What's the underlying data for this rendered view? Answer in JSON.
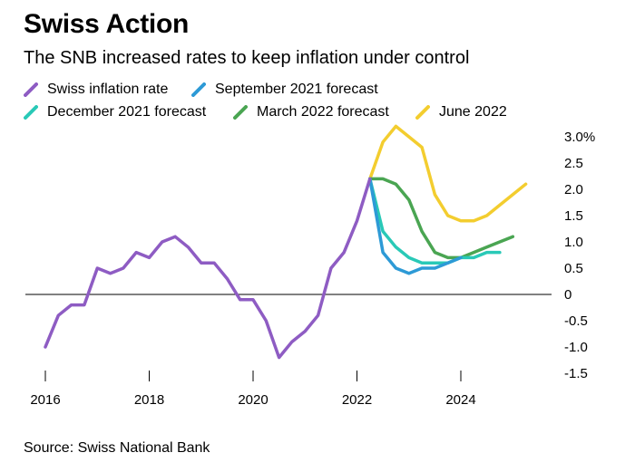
{
  "title": "Swiss Action",
  "subtitle": "The SNB increased rates to keep inflation under control",
  "source": "Source: Swiss National Bank",
  "chart_data": {
    "type": "line",
    "x_axis": {
      "ticks": [
        2016,
        2018,
        2020,
        2022,
        2024
      ],
      "range": [
        2015.9,
        2026.0
      ]
    },
    "y_axis": {
      "range": [
        -1.5,
        3.0
      ],
      "ticks": [
        3.0,
        2.5,
        2.0,
        1.5,
        1.0,
        0.5,
        0,
        -0.5,
        -1.0,
        -1.5
      ],
      "tick_labels": [
        "3.0%",
        "2.5",
        "2.0",
        "1.5",
        "1.0",
        "0.5",
        "0",
        "-0.5",
        "-1.0",
        "-1.5"
      ],
      "position": "right",
      "zero_line": true
    },
    "grid": false,
    "legend_position": "top",
    "series": [
      {
        "name": "Swiss inflation rate",
        "color": "#8e5cc3",
        "points": [
          [
            2016.0,
            -1.0
          ],
          [
            2016.25,
            -0.4
          ],
          [
            2016.5,
            -0.2
          ],
          [
            2016.75,
            -0.2
          ],
          [
            2017.0,
            0.5
          ],
          [
            2017.25,
            0.4
          ],
          [
            2017.5,
            0.5
          ],
          [
            2017.75,
            0.8
          ],
          [
            2018.0,
            0.7
          ],
          [
            2018.25,
            1.0
          ],
          [
            2018.5,
            1.1
          ],
          [
            2018.75,
            0.9
          ],
          [
            2019.0,
            0.6
          ],
          [
            2019.25,
            0.6
          ],
          [
            2019.5,
            0.3
          ],
          [
            2019.75,
            -0.1
          ],
          [
            2020.0,
            -0.1
          ],
          [
            2020.25,
            -0.5
          ],
          [
            2020.5,
            -1.2
          ],
          [
            2020.75,
            -0.9
          ],
          [
            2021.0,
            -0.7
          ],
          [
            2021.25,
            -0.4
          ],
          [
            2021.5,
            0.5
          ],
          [
            2021.75,
            0.8
          ],
          [
            2022.0,
            1.4
          ],
          [
            2022.25,
            2.2
          ]
        ]
      },
      {
        "name": "September 2021 forecast",
        "color": "#2d9ad6",
        "points": [
          [
            2022.25,
            2.2
          ],
          [
            2022.5,
            0.8
          ],
          [
            2022.75,
            0.5
          ],
          [
            2023.0,
            0.4
          ],
          [
            2023.25,
            0.5
          ],
          [
            2023.5,
            0.5
          ],
          [
            2023.75,
            0.6
          ],
          [
            2024.0,
            0.7
          ]
        ]
      },
      {
        "name": "December 2021 forecast",
        "color": "#29c9b7",
        "points": [
          [
            2022.25,
            2.2
          ],
          [
            2022.5,
            1.2
          ],
          [
            2022.75,
            0.9
          ],
          [
            2023.0,
            0.7
          ],
          [
            2023.25,
            0.6
          ],
          [
            2023.5,
            0.6
          ],
          [
            2023.75,
            0.6
          ],
          [
            2024.0,
            0.7
          ],
          [
            2024.25,
            0.7
          ],
          [
            2024.5,
            0.8
          ],
          [
            2024.75,
            0.8
          ]
        ]
      },
      {
        "name": "March 2022 forecast",
        "color": "#4aa552",
        "points": [
          [
            2022.25,
            2.2
          ],
          [
            2022.5,
            2.2
          ],
          [
            2022.75,
            2.1
          ],
          [
            2023.0,
            1.8
          ],
          [
            2023.25,
            1.2
          ],
          [
            2023.5,
            0.8
          ],
          [
            2023.75,
            0.7
          ],
          [
            2024.0,
            0.7
          ],
          [
            2024.25,
            0.8
          ],
          [
            2024.5,
            0.9
          ],
          [
            2024.75,
            1.0
          ],
          [
            2025.0,
            1.1
          ]
        ]
      },
      {
        "name": "June 2022",
        "color": "#f3cd2f",
        "points": [
          [
            2022.25,
            2.2
          ],
          [
            2022.5,
            2.9
          ],
          [
            2022.75,
            3.2
          ],
          [
            2023.0,
            3.0
          ],
          [
            2023.25,
            2.8
          ],
          [
            2023.5,
            1.9
          ],
          [
            2023.75,
            1.5
          ],
          [
            2024.0,
            1.4
          ],
          [
            2024.25,
            1.4
          ],
          [
            2024.5,
            1.5
          ],
          [
            2024.75,
            1.7
          ],
          [
            2025.0,
            1.9
          ],
          [
            2025.25,
            2.1
          ]
        ]
      }
    ]
  }
}
